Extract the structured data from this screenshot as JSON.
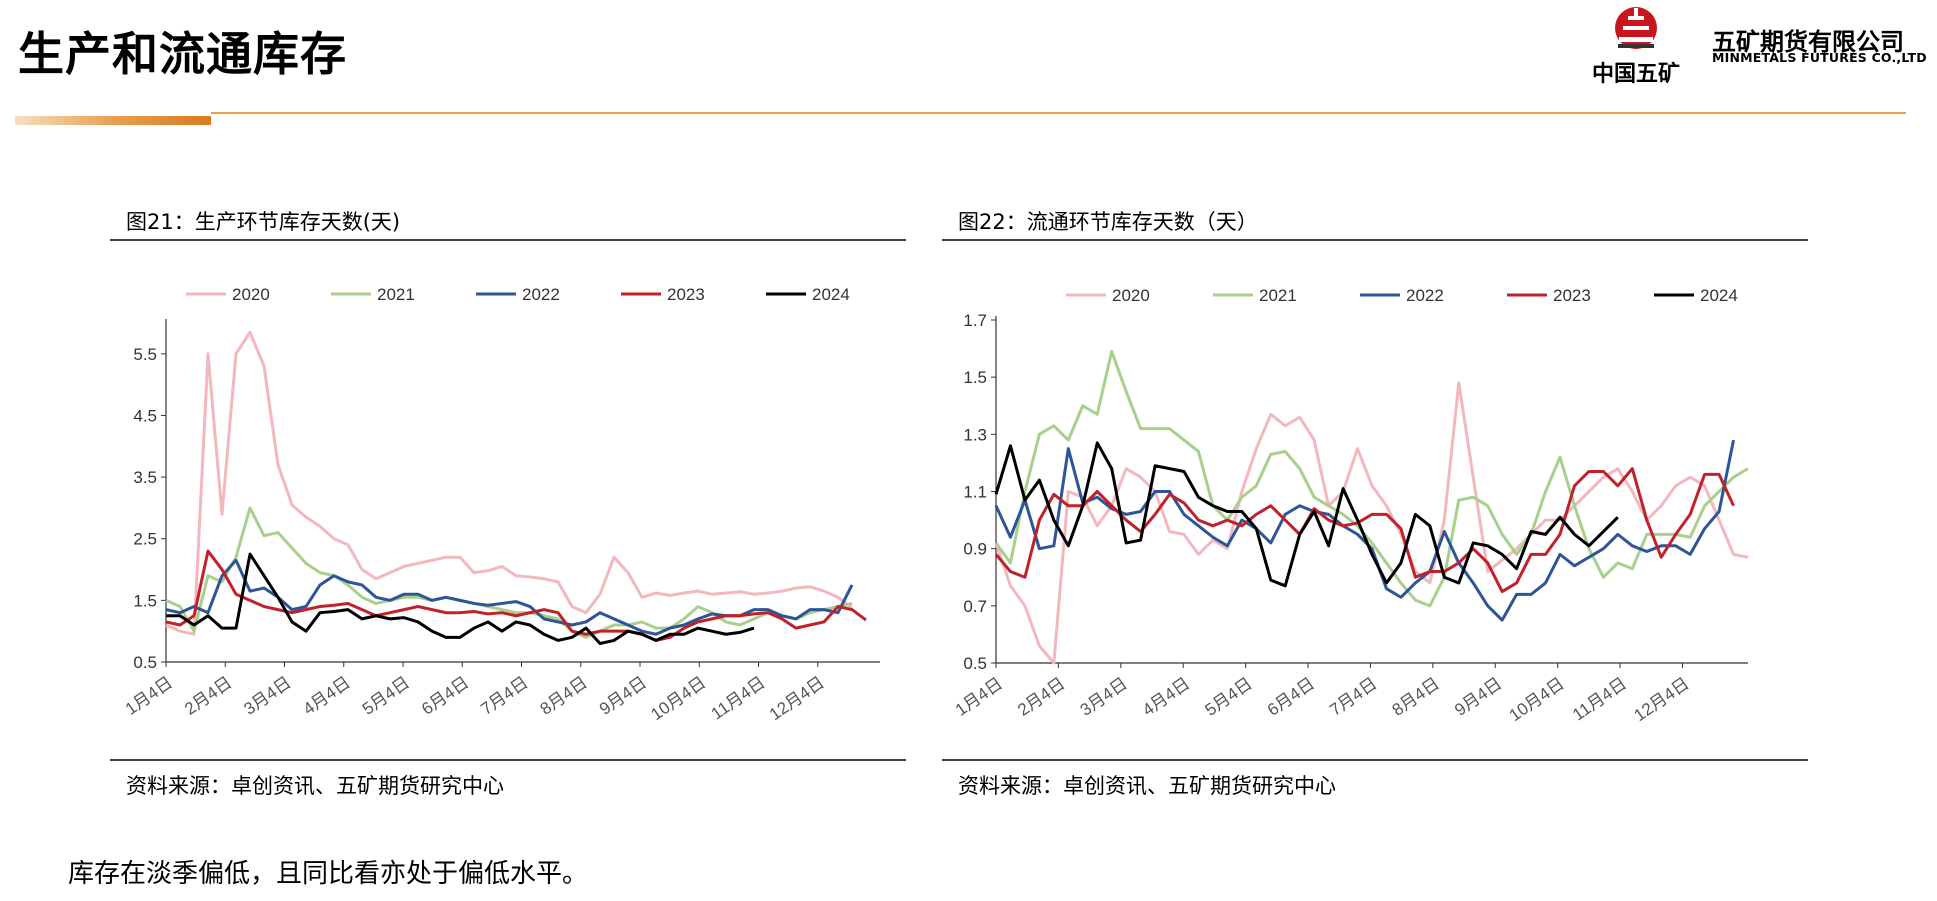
{
  "header": {
    "title": "生产和流通库存",
    "logo_cn": "中国五矿",
    "company_cn": "五矿期货有限公司",
    "company_en": "MINMETALS FUTURES CO.,LTD",
    "accent_color": "#e6a24e",
    "brand_red": "#c8161d"
  },
  "footer": {
    "text": "库存在淡季偏低，且同比看亦处于偏低水平。"
  },
  "chart_data": [
    {
      "type": "line",
      "title": "图21：生产环节库存天数(天)",
      "source": "资料来源：卓创资讯、五矿期货研究中心",
      "x_tick_labels": [
        "1月4日",
        "2月4日",
        "3月4日",
        "4月4日",
        "5月4日",
        "6月4日",
        "7月4日",
        "8月4日",
        "9月4日",
        "10月4日",
        "11月4日",
        "12月4日"
      ],
      "x_range": [
        0,
        51
      ],
      "y_ticks": [
        0.5,
        1.5,
        2.5,
        3.5,
        4.5,
        5.5
      ],
      "ylim": [
        0.5,
        6.0
      ],
      "grid": false,
      "legend_position": "top",
      "series": [
        {
          "name": "2020",
          "color": "#f2b8be",
          "values": [
            1.1,
            1.0,
            0.95,
            5.5,
            2.9,
            5.5,
            5.85,
            5.3,
            3.7,
            3.05,
            2.85,
            2.7,
            2.5,
            2.4,
            2.0,
            1.85,
            1.95,
            2.05,
            2.1,
            2.15,
            2.2,
            2.2,
            1.95,
            1.98,
            2.05,
            1.9,
            1.88,
            1.85,
            1.8,
            1.4,
            1.3,
            1.6,
            2.2,
            1.95,
            1.55,
            1.62,
            1.58,
            1.62,
            1.65,
            1.6,
            1.62,
            1.64,
            1.6,
            1.62,
            1.65,
            1.7,
            1.72,
            1.65,
            1.55,
            1.38
          ]
        },
        {
          "name": "2021",
          "color": "#a8d08d",
          "values": [
            1.5,
            1.4,
            1.0,
            1.9,
            1.8,
            2.2,
            3.0,
            2.55,
            2.6,
            2.35,
            2.1,
            1.95,
            1.9,
            1.75,
            1.55,
            1.45,
            1.5,
            1.55,
            1.55,
            1.5,
            1.55,
            1.5,
            1.45,
            1.4,
            1.35,
            1.3,
            1.3,
            1.25,
            1.2,
            1.0,
            0.9,
            1.0,
            1.1,
            1.1,
            1.15,
            1.05,
            1.05,
            1.2,
            1.4,
            1.3,
            1.15,
            1.1,
            1.2,
            1.3,
            1.25,
            1.2,
            1.3,
            1.35,
            1.4,
            1.45
          ]
        },
        {
          "name": "2022",
          "color": "#2e5597",
          "values": [
            1.35,
            1.3,
            1.4,
            1.3,
            1.9,
            2.15,
            1.65,
            1.7,
            1.55,
            1.35,
            1.4,
            1.75,
            1.9,
            1.8,
            1.75,
            1.55,
            1.5,
            1.6,
            1.6,
            1.5,
            1.55,
            1.5,
            1.45,
            1.42,
            1.45,
            1.48,
            1.4,
            1.2,
            1.15,
            1.1,
            1.15,
            1.3,
            1.2,
            1.1,
            1.0,
            0.95,
            1.05,
            1.1,
            1.2,
            1.28,
            1.25,
            1.25,
            1.35,
            1.35,
            1.25,
            1.2,
            1.35,
            1.35,
            1.3,
            1.75
          ]
        },
        {
          "name": "2023",
          "color": "#c0212b",
          "values": [
            1.15,
            1.1,
            1.25,
            2.3,
            2.0,
            1.6,
            1.5,
            1.4,
            1.35,
            1.3,
            1.35,
            1.4,
            1.42,
            1.45,
            1.35,
            1.25,
            1.3,
            1.35,
            1.4,
            1.35,
            1.3,
            1.3,
            1.32,
            1.28,
            1.3,
            1.25,
            1.3,
            1.35,
            1.3,
            1.0,
            0.95,
            1.0,
            1.0,
            1.0,
            0.95,
            0.85,
            0.9,
            1.05,
            1.15,
            1.2,
            1.25,
            1.25,
            1.28,
            1.3,
            1.2,
            1.05,
            1.1,
            1.15,
            1.4,
            1.35,
            1.18
          ]
        },
        {
          "name": "2024",
          "color": "#000000",
          "values": [
            1.25,
            1.25,
            1.1,
            1.25,
            1.05,
            1.05,
            2.25,
            1.9,
            1.55,
            1.15,
            1.0,
            1.3,
            1.32,
            1.35,
            1.2,
            1.25,
            1.2,
            1.22,
            1.15,
            1.0,
            0.9,
            0.9,
            1.05,
            1.15,
            1.0,
            1.15,
            1.1,
            0.95,
            0.85,
            0.9,
            1.05,
            0.8,
            0.85,
            1.0,
            0.95,
            0.85,
            0.95,
            0.95,
            1.05,
            1.0,
            0.95,
            0.98,
            1.05
          ]
        }
      ]
    },
    {
      "type": "line",
      "title": "图22：流通环节库存天数（天）",
      "source": "资料来源：卓创资讯、五矿期货研究中心",
      "x_tick_labels": [
        "1月4日",
        "2月4日",
        "3月4日",
        "4月4日",
        "5月4日",
        "6月4日",
        "7月4日",
        "8月4日",
        "9月4日",
        "10月4日",
        "11月4日",
        "12月4日"
      ],
      "x_range": [
        0,
        52
      ],
      "y_ticks": [
        0.5,
        0.7,
        0.9,
        1.1,
        1.3,
        1.5,
        1.7
      ],
      "ylim": [
        0.5,
        1.7
      ],
      "grid": false,
      "legend_position": "top",
      "series": [
        {
          "name": "2020",
          "color": "#f2b8be",
          "values": [
            0.92,
            0.77,
            0.7,
            0.56,
            0.5,
            1.1,
            1.08,
            0.98,
            1.05,
            1.18,
            1.15,
            1.1,
            0.96,
            0.95,
            0.88,
            0.93,
            0.9,
            1.1,
            1.25,
            1.37,
            1.33,
            1.36,
            1.28,
            1.05,
            1.1,
            1.25,
            1.12,
            1.05,
            0.95,
            0.82,
            0.78,
            1.0,
            1.48,
            1.15,
            0.82,
            0.86,
            0.9,
            0.95,
            1.0,
            1.0,
            1.05,
            1.1,
            1.15,
            1.18,
            1.1,
            1.0,
            1.05,
            1.12,
            1.15,
            1.12,
            1.0,
            0.88,
            0.87
          ]
        },
        {
          "name": "2021",
          "color": "#a8d08d",
          "values": [
            0.92,
            0.85,
            1.1,
            1.3,
            1.33,
            1.28,
            1.4,
            1.37,
            1.59,
            1.45,
            1.32,
            1.32,
            1.32,
            1.28,
            1.24,
            1.05,
            1.0,
            1.08,
            1.12,
            1.23,
            1.24,
            1.18,
            1.08,
            1.05,
            1.02,
            0.98,
            0.92,
            0.85,
            0.78,
            0.72,
            0.7,
            0.8,
            1.07,
            1.08,
            1.05,
            0.95,
            0.88,
            0.95,
            1.1,
            1.22,
            1.05,
            0.9,
            0.8,
            0.85,
            0.83,
            0.95,
            0.95,
            0.95,
            0.94,
            1.05,
            1.1,
            1.15,
            1.18
          ]
        },
        {
          "name": "2022",
          "color": "#2e5597",
          "values": [
            1.05,
            0.94,
            1.07,
            0.9,
            0.91,
            1.25,
            1.06,
            1.08,
            1.04,
            1.02,
            1.03,
            1.1,
            1.1,
            1.02,
            0.98,
            0.94,
            0.91,
            1.0,
            0.97,
            0.92,
            1.02,
            1.05,
            1.03,
            1.02,
            0.98,
            0.95,
            0.9,
            0.76,
            0.73,
            0.78,
            0.82,
            0.96,
            0.85,
            0.78,
            0.7,
            0.65,
            0.74,
            0.74,
            0.78,
            0.88,
            0.84,
            0.87,
            0.9,
            0.95,
            0.91,
            0.89,
            0.91,
            0.91,
            0.88,
            0.97,
            1.03,
            1.28
          ]
        },
        {
          "name": "2023",
          "color": "#c0212b",
          "values": [
            0.88,
            0.82,
            0.8,
            1.0,
            1.09,
            1.05,
            1.05,
            1.1,
            1.05,
            1.0,
            0.96,
            1.02,
            1.09,
            1.06,
            1.0,
            0.98,
            1.0,
            0.98,
            1.02,
            1.05,
            1.0,
            0.95,
            1.04,
            1.0,
            0.98,
            0.99,
            1.02,
            1.02,
            0.97,
            0.8,
            0.82,
            0.82,
            0.85,
            0.9,
            0.85,
            0.75,
            0.78,
            0.88,
            0.88,
            0.95,
            1.12,
            1.17,
            1.17,
            1.12,
            1.18,
            1.0,
            0.87,
            0.95,
            1.02,
            1.16,
            1.16,
            1.05
          ]
        },
        {
          "name": "2024",
          "color": "#000000",
          "values": [
            1.09,
            1.26,
            1.07,
            1.14,
            1.0,
            0.91,
            1.05,
            1.27,
            1.18,
            0.92,
            0.93,
            1.19,
            1.18,
            1.17,
            1.08,
            1.05,
            1.03,
            1.03,
            0.97,
            0.79,
            0.77,
            0.95,
            1.03,
            0.91,
            1.11,
            1.0,
            0.88,
            0.78,
            0.85,
            1.02,
            0.98,
            0.8,
            0.78,
            0.92,
            0.91,
            0.88,
            0.83,
            0.96,
            0.95,
            1.01,
            0.95,
            0.91,
            0.96,
            1.01
          ]
        }
      ]
    }
  ]
}
